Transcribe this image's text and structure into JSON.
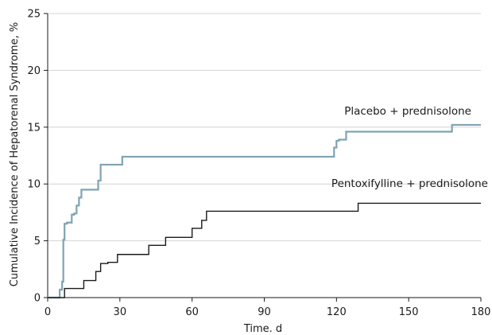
{
  "chart_data": {
    "type": "line",
    "title": "",
    "xlabel": "Time. d",
    "ylabel": "Cumulative Incidence of Hepatorenal Syndrome, %",
    "xlim": [
      0,
      180
    ],
    "ylim": [
      0,
      25
    ],
    "xticks": [
      0,
      30,
      60,
      90,
      120,
      150,
      180
    ],
    "yticks": [
      0,
      5,
      10,
      15,
      20,
      25
    ],
    "grid": "horizontal",
    "step": true,
    "series": [
      {
        "name": "Placebo + prednisolone",
        "color": "#7fa3b3",
        "x": [
          0,
          4,
          5,
          6,
          6.5,
          7,
          8,
          10,
          11,
          12,
          13,
          14,
          16,
          21,
          22,
          30,
          31,
          118,
          119,
          120,
          121,
          124,
          167,
          168,
          180
        ],
        "y": [
          0,
          0,
          0.7,
          1.4,
          5.1,
          6.5,
          6.6,
          7.3,
          7.4,
          8.1,
          8.8,
          9.5,
          9.5,
          10.3,
          11.7,
          11.7,
          12.4,
          12.4,
          13.2,
          13.8,
          13.9,
          14.6,
          14.6,
          15.2,
          15.2
        ]
      },
      {
        "name": "Pentoxifylline + prednisolone",
        "color": "#1a1a1a",
        "x": [
          0,
          5,
          7,
          15,
          20,
          22,
          25,
          29,
          42,
          49,
          60,
          64,
          66,
          129,
          180
        ],
        "y": [
          0,
          0,
          0.8,
          1.5,
          2.3,
          3.0,
          3.1,
          3.8,
          4.6,
          5.3,
          6.1,
          6.8,
          7.6,
          8.3,
          8.3
        ]
      }
    ]
  }
}
